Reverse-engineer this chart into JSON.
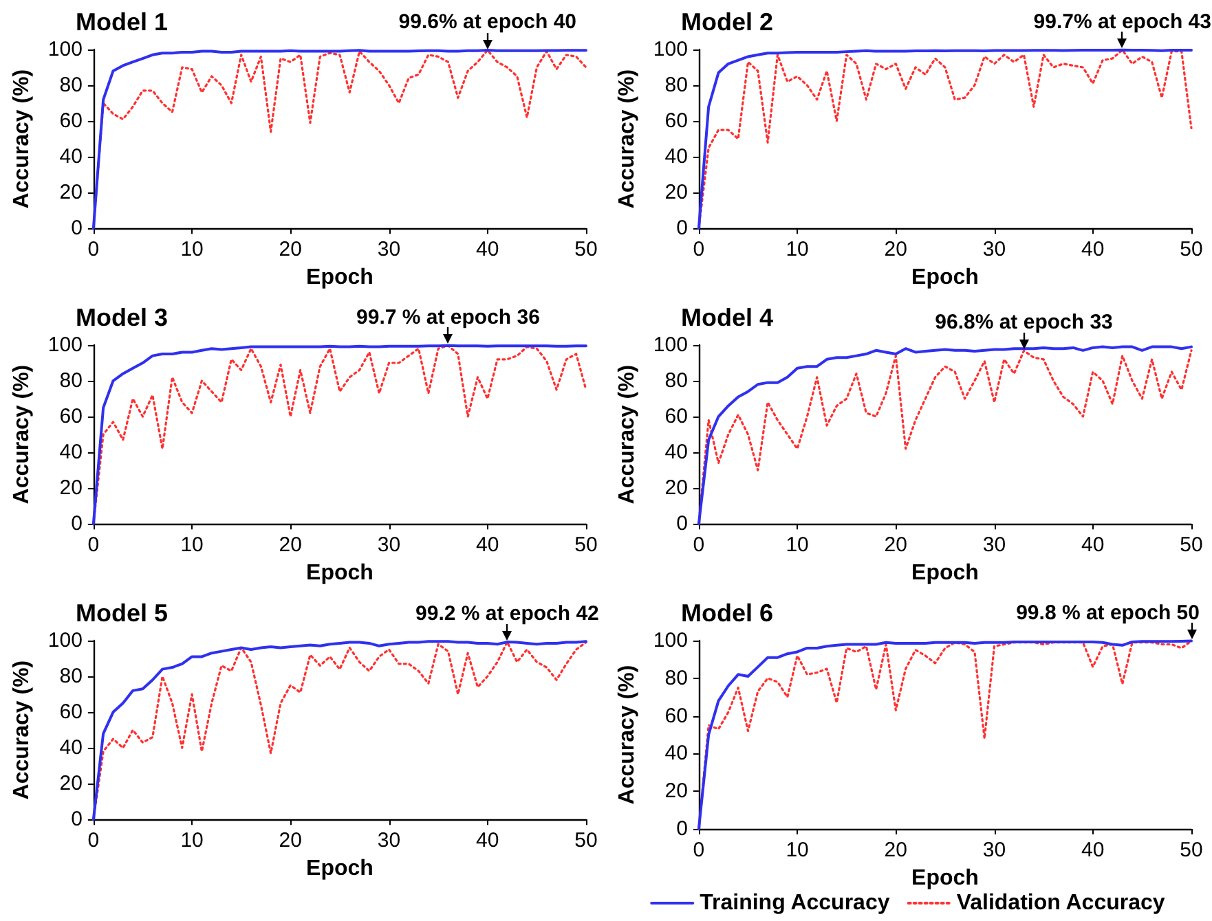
{
  "chart_data": [
    {
      "type": "line",
      "title": "Model 1",
      "xlabel": "Epoch",
      "ylabel": "Accuracy (%)",
      "xlim": [
        0,
        50
      ],
      "xticks": [
        0,
        10,
        20,
        30,
        40,
        50
      ],
      "ylim": [
        0,
        100
      ],
      "yticks": [
        0,
        20,
        40,
        60,
        80,
        100
      ],
      "grid": false,
      "legend": false,
      "marker": "none",
      "x": [
        0,
        1,
        2,
        3,
        4,
        5,
        6,
        7,
        8,
        9,
        10,
        11,
        12,
        13,
        14,
        15,
        16,
        17,
        18,
        19,
        20,
        21,
        22,
        23,
        24,
        25,
        26,
        27,
        28,
        29,
        30,
        31,
        32,
        33,
        34,
        35,
        36,
        37,
        38,
        39,
        40,
        41,
        42,
        43,
        44,
        45,
        46,
        47,
        48,
        49,
        50
      ],
      "annotations": [
        {
          "text": "99.6% at epoch 40",
          "x": 40,
          "y": 99.6
        }
      ],
      "series": [
        {
          "color": "#3030f0",
          "line_style": "solid",
          "values": [
            0,
            72,
            88,
            91,
            93,
            95,
            97,
            98,
            98,
            98.5,
            98.5,
            99,
            99,
            98.5,
            98.5,
            99,
            99,
            99,
            99,
            99,
            99.3,
            99,
            99,
            99,
            99,
            99,
            99.3,
            99.5,
            99,
            99,
            99,
            99,
            99,
            99.2,
            99.3,
            99.3,
            99,
            99,
            99.3,
            99.3,
            99.6,
            99.3,
            99.3,
            99.3,
            99.3,
            99.3,
            99.4,
            99.4,
            99.5,
            99.5,
            99.5
          ]
        },
        {
          "color": "#ff3030",
          "line_style": "dotted",
          "values": [
            0,
            70,
            64,
            61,
            68,
            77,
            77,
            70,
            65,
            90,
            89,
            76,
            85,
            80,
            70,
            97,
            82,
            96,
            54,
            95,
            93,
            97,
            59,
            96,
            98,
            97,
            76,
            99,
            93,
            88,
            80,
            70,
            84,
            86,
            97,
            96,
            93,
            73,
            88,
            93,
            99.6,
            93,
            90,
            85,
            62,
            90,
            99,
            89,
            97,
            96,
            90
          ]
        }
      ]
    },
    {
      "type": "line",
      "title": "Model 2",
      "xlabel": "Epoch",
      "ylabel": "Accuracy (%)",
      "xlim": [
        0,
        50
      ],
      "xticks": [
        0,
        10,
        20,
        30,
        40,
        50
      ],
      "ylim": [
        0,
        100
      ],
      "yticks": [
        0,
        20,
        40,
        60,
        80,
        100
      ],
      "grid": false,
      "legend": false,
      "marker": "none",
      "x": [
        0,
        1,
        2,
        3,
        4,
        5,
        6,
        7,
        8,
        9,
        10,
        11,
        12,
        13,
        14,
        15,
        16,
        17,
        18,
        19,
        20,
        21,
        22,
        23,
        24,
        25,
        26,
        27,
        28,
        29,
        30,
        31,
        32,
        33,
        34,
        35,
        36,
        37,
        38,
        39,
        40,
        41,
        42,
        43,
        44,
        45,
        46,
        47,
        48,
        49,
        50
      ],
      "annotations": [
        {
          "text": "99.7% at epoch 43",
          "x": 43,
          "y": 99.7
        }
      ],
      "series": [
        {
          "color": "#3030f0",
          "line_style": "solid",
          "values": [
            0,
            68,
            87,
            92,
            94,
            96,
            97,
            98,
            98,
            98.3,
            98.5,
            98.5,
            98.5,
            98.5,
            98.5,
            98.8,
            99,
            99.3,
            99,
            99,
            99,
            99,
            99.2,
            99.2,
            99.3,
            99.2,
            99.3,
            99.3,
            99.3,
            99.2,
            99.4,
            99.4,
            99.4,
            99.4,
            99.5,
            99.5,
            99.5,
            99.4,
            99.5,
            99.6,
            99.6,
            99.6,
            99.6,
            99.7,
            99.6,
            99.6,
            99.5,
            99.3,
            99.6,
            99.6,
            99.6
          ]
        },
        {
          "color": "#ff3030",
          "line_style": "dotted",
          "values": [
            0,
            45,
            55,
            55,
            50,
            93,
            88,
            48,
            97,
            82,
            85,
            80,
            72,
            88,
            60,
            97,
            92,
            72,
            92,
            89,
            92,
            78,
            90,
            86,
            95,
            90,
            72,
            73,
            80,
            96,
            92,
            97,
            93,
            97,
            68,
            97,
            90,
            92,
            91,
            90,
            81,
            94,
            95,
            99.7,
            92,
            96,
            93,
            73,
            99,
            99,
            56
          ]
        }
      ]
    },
    {
      "type": "line",
      "title": "Model 3",
      "xlabel": "Epoch",
      "ylabel": "Accuracy (%)",
      "xlim": [
        0,
        50
      ],
      "xticks": [
        0,
        10,
        20,
        30,
        40,
        50
      ],
      "ylim": [
        0,
        100
      ],
      "yticks": [
        0,
        20,
        40,
        60,
        80,
        100
      ],
      "grid": false,
      "legend": false,
      "marker": "none",
      "x": [
        0,
        1,
        2,
        3,
        4,
        5,
        6,
        7,
        8,
        9,
        10,
        11,
        12,
        13,
        14,
        15,
        16,
        17,
        18,
        19,
        20,
        21,
        22,
        23,
        24,
        25,
        26,
        27,
        28,
        29,
        30,
        31,
        32,
        33,
        34,
        35,
        36,
        37,
        38,
        39,
        40,
        41,
        42,
        43,
        44,
        45,
        46,
        47,
        48,
        49,
        50
      ],
      "annotations": [
        {
          "text": "99.7 % at epoch 36",
          "x": 36,
          "y": 99.7
        }
      ],
      "series": [
        {
          "color": "#3030f0",
          "line_style": "solid",
          "values": [
            0,
            65,
            80,
            84,
            87,
            90,
            94,
            95,
            95,
            96,
            96,
            97,
            98,
            97.5,
            98,
            98.5,
            99,
            99,
            99,
            99,
            99,
            99,
            99,
            99,
            99.3,
            99,
            99,
            99.3,
            99,
            99,
            99.3,
            99.3,
            99.3,
            99.3,
            99.5,
            99.5,
            99.7,
            99.5,
            99.5,
            99.5,
            99.3,
            99.5,
            99.5,
            99.5,
            99.5,
            99.5,
            99.5,
            99.3,
            99.3,
            99.5,
            99.5
          ]
        },
        {
          "color": "#ff3030",
          "line_style": "dotted",
          "values": [
            0,
            50,
            57,
            47,
            70,
            60,
            72,
            42,
            82,
            68,
            62,
            80,
            74,
            68,
            92,
            86,
            98,
            88,
            68,
            89,
            60,
            86,
            62,
            88,
            98,
            74,
            82,
            86,
            96,
            73,
            90,
            90,
            94,
            98,
            73,
            98,
            99.7,
            95,
            60,
            82,
            70,
            92,
            92,
            94,
            99,
            98,
            91,
            75,
            92,
            95,
            75
          ]
        }
      ]
    },
    {
      "type": "line",
      "title": "Model 4",
      "xlabel": "Epoch",
      "ylabel": "Accuracy (%)",
      "xlim": [
        0,
        50
      ],
      "xticks": [
        0,
        10,
        20,
        30,
        40,
        50
      ],
      "ylim": [
        0,
        100
      ],
      "yticks": [
        0,
        20,
        40,
        60,
        80,
        100
      ],
      "grid": false,
      "legend": false,
      "marker": "none",
      "x": [
        0,
        1,
        2,
        3,
        4,
        5,
        6,
        7,
        8,
        9,
        10,
        11,
        12,
        13,
        14,
        15,
        16,
        17,
        18,
        19,
        20,
        21,
        22,
        23,
        24,
        25,
        26,
        27,
        28,
        29,
        30,
        31,
        32,
        33,
        34,
        35,
        36,
        37,
        38,
        39,
        40,
        41,
        42,
        43,
        44,
        45,
        46,
        47,
        48,
        49,
        50
      ],
      "annotations": [
        {
          "text": "96.8% at epoch 33",
          "x": 33,
          "y": 96.8
        }
      ],
      "series": [
        {
          "color": "#3030f0",
          "line_style": "solid",
          "values": [
            0,
            47,
            60,
            66,
            71,
            74,
            78,
            79,
            79,
            82,
            87,
            88,
            88,
            92,
            93,
            93,
            94,
            95,
            97,
            96,
            95,
            98,
            96,
            96.5,
            97,
            97.5,
            97,
            97,
            96.5,
            97,
            97.5,
            97.5,
            98,
            98,
            98,
            98.5,
            98,
            98,
            98.5,
            97,
            98.5,
            99,
            98.5,
            99,
            99,
            97,
            99,
            99,
            99,
            98,
            99
          ]
        },
        {
          "color": "#ff3030",
          "line_style": "dotted",
          "values": [
            0,
            58,
            34,
            50,
            61,
            50,
            30,
            68,
            58,
            50,
            42,
            60,
            82,
            55,
            66,
            70,
            84,
            62,
            60,
            73,
            94,
            42,
            58,
            70,
            82,
            88,
            85,
            70,
            80,
            91,
            68,
            92,
            84,
            96.8,
            93,
            92,
            80,
            71,
            67,
            60,
            85,
            80,
            67,
            94,
            80,
            70,
            92,
            70,
            85,
            75,
            97
          ]
        }
      ]
    },
    {
      "type": "line",
      "title": "Model 5",
      "xlabel": "Epoch",
      "ylabel": "Accuracy (%)",
      "xlim": [
        0,
        50
      ],
      "xticks": [
        0,
        10,
        20,
        30,
        40,
        50
      ],
      "ylim": [
        0,
        100
      ],
      "yticks": [
        0,
        20,
        40,
        60,
        80,
        100
      ],
      "grid": false,
      "legend": false,
      "marker": "none",
      "x": [
        0,
        1,
        2,
        3,
        4,
        5,
        6,
        7,
        8,
        9,
        10,
        11,
        12,
        13,
        14,
        15,
        16,
        17,
        18,
        19,
        20,
        21,
        22,
        23,
        24,
        25,
        26,
        27,
        28,
        29,
        30,
        31,
        32,
        33,
        34,
        35,
        36,
        37,
        38,
        39,
        40,
        41,
        42,
        43,
        44,
        45,
        46,
        47,
        48,
        49,
        50
      ],
      "annotations": [
        {
          "text": "99.2 % at epoch 42",
          "x": 42,
          "y": 99.2
        }
      ],
      "series": [
        {
          "color": "#3030f0",
          "line_style": "solid",
          "values": [
            0,
            48,
            60,
            65,
            72,
            73,
            78,
            84,
            85,
            87,
            91,
            91,
            93,
            94,
            95,
            96,
            95,
            96,
            96.5,
            96,
            96.5,
            97,
            97.5,
            97,
            98,
            98.5,
            99,
            99,
            98.5,
            97,
            98,
            98.5,
            99,
            99,
            99.5,
            99.5,
            99.5,
            99,
            99,
            98.5,
            98.5,
            98,
            99.2,
            99,
            98.5,
            98,
            98.5,
            98.5,
            99,
            99,
            99.5
          ]
        },
        {
          "color": "#ff3030",
          "line_style": "dotted",
          "values": [
            0,
            38,
            45,
            40,
            50,
            43,
            46,
            80,
            65,
            40,
            70,
            38,
            65,
            86,
            83,
            96,
            88,
            64,
            37,
            65,
            75,
            71,
            92,
            86,
            91,
            84,
            96,
            88,
            83,
            91,
            95,
            87,
            87,
            83,
            76,
            98,
            94,
            70,
            93,
            74,
            80,
            88,
            99.2,
            88,
            95,
            88,
            85,
            78,
            87,
            95,
            99
          ]
        }
      ]
    },
    {
      "type": "line",
      "title": "Model 6",
      "xlabel": "Epoch",
      "ylabel": "Accuracy (%)",
      "xlim": [
        0,
        50
      ],
      "xticks": [
        0,
        10,
        20,
        30,
        40,
        50
      ],
      "ylim": [
        0,
        100
      ],
      "yticks": [
        0,
        20,
        40,
        60,
        80,
        100
      ],
      "grid": false,
      "legend": "bottom",
      "marker": "none",
      "x": [
        0,
        1,
        2,
        3,
        4,
        5,
        6,
        7,
        8,
        9,
        10,
        11,
        12,
        13,
        14,
        15,
        16,
        17,
        18,
        19,
        20,
        21,
        22,
        23,
        24,
        25,
        26,
        27,
        28,
        29,
        30,
        31,
        32,
        33,
        34,
        35,
        36,
        37,
        38,
        39,
        40,
        41,
        42,
        43,
        44,
        45,
        46,
        47,
        48,
        49,
        50
      ],
      "annotations": [
        {
          "text": "99.8 % at epoch 50",
          "x": 50,
          "y": 99.8
        }
      ],
      "series": [
        {
          "name": "Training Accuracy",
          "color": "#3030f0",
          "line_style": "solid",
          "values": [
            0,
            50,
            68,
            76,
            82,
            81,
            86,
            91,
            91,
            93,
            94,
            96,
            96,
            97,
            97.5,
            98,
            98,
            98,
            98,
            99,
            98.5,
            98.5,
            98.5,
            98.5,
            99,
            99,
            99,
            99,
            98.5,
            99,
            99,
            99,
            99.3,
            99.3,
            99.3,
            99.3,
            99.3,
            99.3,
            99.3,
            99.3,
            99.3,
            99,
            98,
            97.5,
            99.3,
            99.5,
            99.5,
            99.5,
            99.5,
            99.6,
            99.8
          ]
        },
        {
          "name": "Validation Accuracy",
          "color": "#ff3030",
          "line_style": "dotted",
          "values": [
            0,
            55,
            53,
            62,
            75,
            52,
            73,
            80,
            78,
            70,
            92,
            82,
            83,
            85,
            67,
            96,
            94,
            97,
            74,
            98,
            63,
            85,
            95,
            92,
            88,
            96,
            99,
            98,
            94,
            48,
            97,
            98,
            99,
            99,
            99,
            98,
            99,
            99,
            99,
            99,
            86,
            97,
            98,
            77,
            99,
            99,
            99,
            98,
            98,
            96,
            99.8
          ]
        }
      ]
    }
  ]
}
